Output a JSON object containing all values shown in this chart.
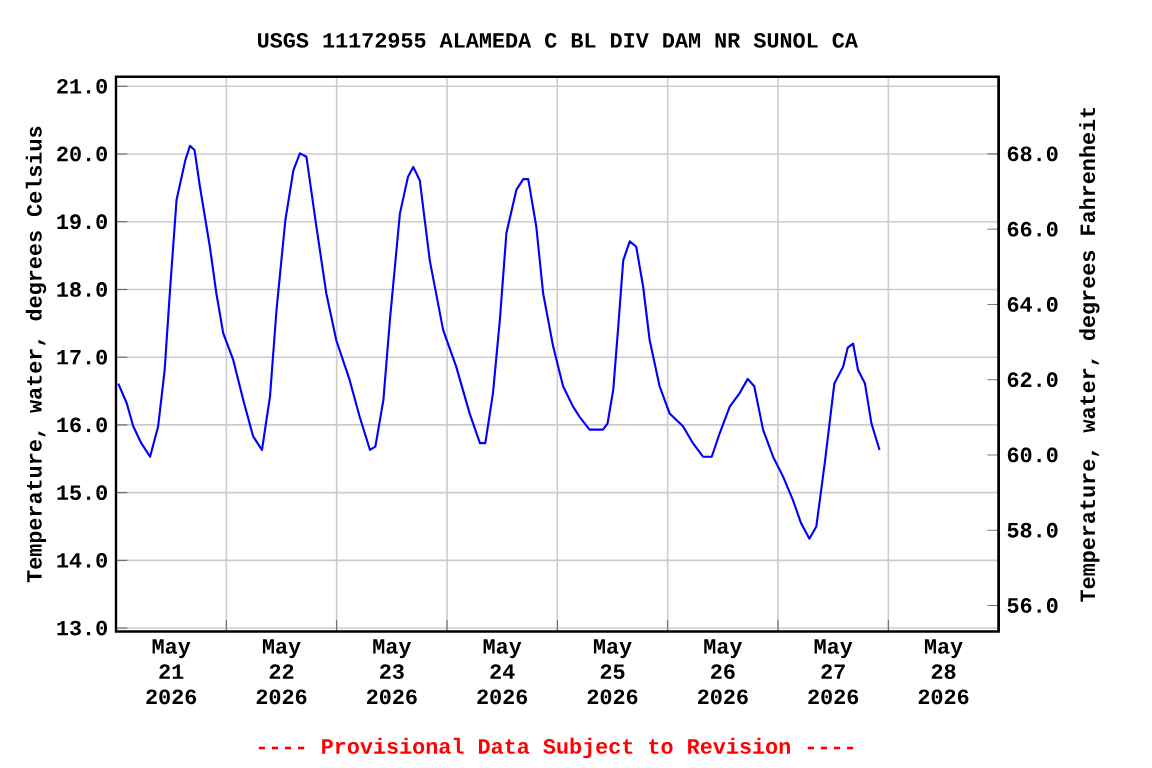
{
  "chart_data": {
    "type": "line",
    "title": "USGS 11172955 ALAMEDA C BL DIV DAM NR SUNOL CA",
    "ylabel": "Temperature, water, degrees Celsius",
    "y2label": "Temperature, water, degrees Fahrenheit",
    "annotations": [
      "---- Provisional Data Subject to Revision ----"
    ],
    "x": [
      "2026-05-21T00:30",
      "2026-05-21T02:20",
      "2026-05-21T03:45",
      "2026-05-21T05:30",
      "2026-05-21T07:25",
      "2026-05-21T09:10",
      "2026-05-21T10:35",
      "2026-05-21T11:45",
      "2026-05-21T13:10",
      "2026-05-21T15:05",
      "2026-05-21T16:05",
      "2026-05-21T17:05",
      "2026-05-21T18:15",
      "2026-05-21T20:25",
      "2026-05-21T21:50",
      "2026-05-21T23:20",
      "2026-05-22T01:30",
      "2026-05-22T03:40",
      "2026-05-22T05:50",
      "2026-05-22T07:45",
      "2026-05-22T09:30",
      "2026-05-22T10:55",
      "2026-05-22T12:50",
      "2026-05-22T14:35",
      "2026-05-22T16:00",
      "2026-05-22T17:25",
      "2026-05-22T19:35",
      "2026-05-22T21:45",
      "2026-05-22T23:55",
      "2026-05-23T02:50",
      "2026-05-23T05:00",
      "2026-05-23T07:15",
      "2026-05-23T08:25",
      "2026-05-23T10:10",
      "2026-05-23T11:35",
      "2026-05-23T13:45",
      "2026-05-23T15:30",
      "2026-05-23T16:40",
      "2026-05-23T18:05",
      "2026-05-23T20:15",
      "2026-05-23T23:10",
      "2026-05-24T02:00",
      "2026-05-24T04:55",
      "2026-05-24T07:10",
      "2026-05-24T08:20",
      "2026-05-24T10:00",
      "2026-05-24T11:30",
      "2026-05-24T12:55",
      "2026-05-24T15:05",
      "2026-05-24T16:35",
      "2026-05-24T17:40",
      "2026-05-24T19:25",
      "2026-05-24T20:55",
      "2026-05-24T23:05",
      "2026-05-25T01:15",
      "2026-05-25T03:25",
      "2026-05-25T04:50",
      "2026-05-25T07:00",
      "2026-05-25T09:55",
      "2026-05-25T10:55",
      "2026-05-25T12:10",
      "2026-05-25T13:15",
      "2026-05-25T14:20",
      "2026-05-25T15:45",
      "2026-05-25T17:10",
      "2026-05-25T18:40",
      "2026-05-25T20:05",
      "2026-05-25T22:15",
      "2026-05-26T00:25",
      "2026-05-26T03:20",
      "2026-05-26T05:30",
      "2026-05-26T07:40",
      "2026-05-26T09:35",
      "2026-05-26T11:20",
      "2026-05-26T13:30",
      "2026-05-26T15:40",
      "2026-05-26T17:25",
      "2026-05-26T18:50",
      "2026-05-26T20:45",
      "2026-05-26T22:55",
      "2026-05-27T01:05",
      "2026-05-27T03:15",
      "2026-05-27T05:00",
      "2026-05-27T06:50",
      "2026-05-27T08:20",
      "2026-05-27T10:15",
      "2026-05-27T12:15",
      "2026-05-27T14:10",
      "2026-05-27T15:10",
      "2026-05-27T16:20",
      "2026-05-27T17:25",
      "2026-05-27T18:55",
      "2026-05-27T20:20",
      "2026-05-27T22:05"
    ],
    "series": [
      {
        "color": "#0000ff",
        "values": [
          16.61,
          16.32,
          15.98,
          15.73,
          15.53,
          15.98,
          16.81,
          17.99,
          19.32,
          19.91,
          20.12,
          20.06,
          19.52,
          18.63,
          17.94,
          17.35,
          16.96,
          16.37,
          15.83,
          15.63,
          16.42,
          17.7,
          19.02,
          19.76,
          20.01,
          19.96,
          18.93,
          17.94,
          17.25,
          16.66,
          16.12,
          15.63,
          15.68,
          16.37,
          17.55,
          19.12,
          19.66,
          19.81,
          19.61,
          18.43,
          17.4,
          16.86,
          16.17,
          15.73,
          15.73,
          16.47,
          17.55,
          18.83,
          19.47,
          19.63,
          19.63,
          18.93,
          17.94,
          17.16,
          16.57,
          16.27,
          16.12,
          15.93,
          15.93,
          16.02,
          16.52,
          17.45,
          18.43,
          18.71,
          18.63,
          18.04,
          17.25,
          16.57,
          16.17,
          15.98,
          15.73,
          15.53,
          15.53,
          15.88,
          16.27,
          16.47,
          16.68,
          16.57,
          15.93,
          15.53,
          15.24,
          14.89,
          14.55,
          14.32,
          14.5,
          15.48,
          16.61,
          16.86,
          17.14,
          17.2,
          16.81,
          16.61,
          16.02,
          15.63
        ]
      }
    ],
    "xlim": [
      "2026-05-21T00:00",
      "2026-05-29T00:00"
    ],
    "xticks": [
      {
        "value": "2026-05-21T00:00",
        "label": null
      },
      {
        "value": "2026-05-21T12:00",
        "label": "May 21 2026"
      },
      {
        "value": "2026-05-22T00:00",
        "label": null
      },
      {
        "value": "2026-05-22T12:00",
        "label": "May 22 2026"
      },
      {
        "value": "2026-05-23T00:00",
        "label": null
      },
      {
        "value": "2026-05-23T12:00",
        "label": "May 23 2026"
      },
      {
        "value": "2026-05-24T00:00",
        "label": null
      },
      {
        "value": "2026-05-24T12:00",
        "label": "May 24 2026"
      },
      {
        "value": "2026-05-25T00:00",
        "label": null
      },
      {
        "value": "2026-05-25T12:00",
        "label": "May 25 2026"
      },
      {
        "value": "2026-05-26T00:00",
        "label": null
      },
      {
        "value": "2026-05-26T12:00",
        "label": "May 26 2026"
      },
      {
        "value": "2026-05-27T00:00",
        "label": null
      },
      {
        "value": "2026-05-27T12:00",
        "label": "May 27 2026"
      },
      {
        "value": "2026-05-28T00:00",
        "label": null
      },
      {
        "value": "2026-05-28T12:00",
        "label": "May 28 2026"
      },
      {
        "value": "2026-05-29T00:00",
        "label": null
      }
    ],
    "ylim": [
      12.95,
      21.14
    ],
    "yticks": [
      {
        "value": 13,
        "label": "13.0"
      },
      {
        "value": 14,
        "label": "14.0"
      },
      {
        "value": 15,
        "label": "15.0"
      },
      {
        "value": 16,
        "label": "16.0"
      },
      {
        "value": 17,
        "label": "17.0"
      },
      {
        "value": 18,
        "label": "18.0"
      },
      {
        "value": 19,
        "label": "19.0"
      },
      {
        "value": 20,
        "label": "20.0"
      },
      {
        "value": 21,
        "label": "21.0"
      }
    ],
    "y2lim": [
      55.31,
      70.05
    ],
    "y2ticks": [
      {
        "value": 56,
        "label": "56.0"
      },
      {
        "value": 58,
        "label": "58.0"
      },
      {
        "value": 60,
        "label": "60.0"
      },
      {
        "value": 62,
        "label": "62.0"
      },
      {
        "value": 64,
        "label": "64.0"
      },
      {
        "value": 66,
        "label": "66.0"
      },
      {
        "value": 68,
        "label": "68.0"
      }
    ],
    "grid": true,
    "marker": "none",
    "line_style": "solid"
  }
}
